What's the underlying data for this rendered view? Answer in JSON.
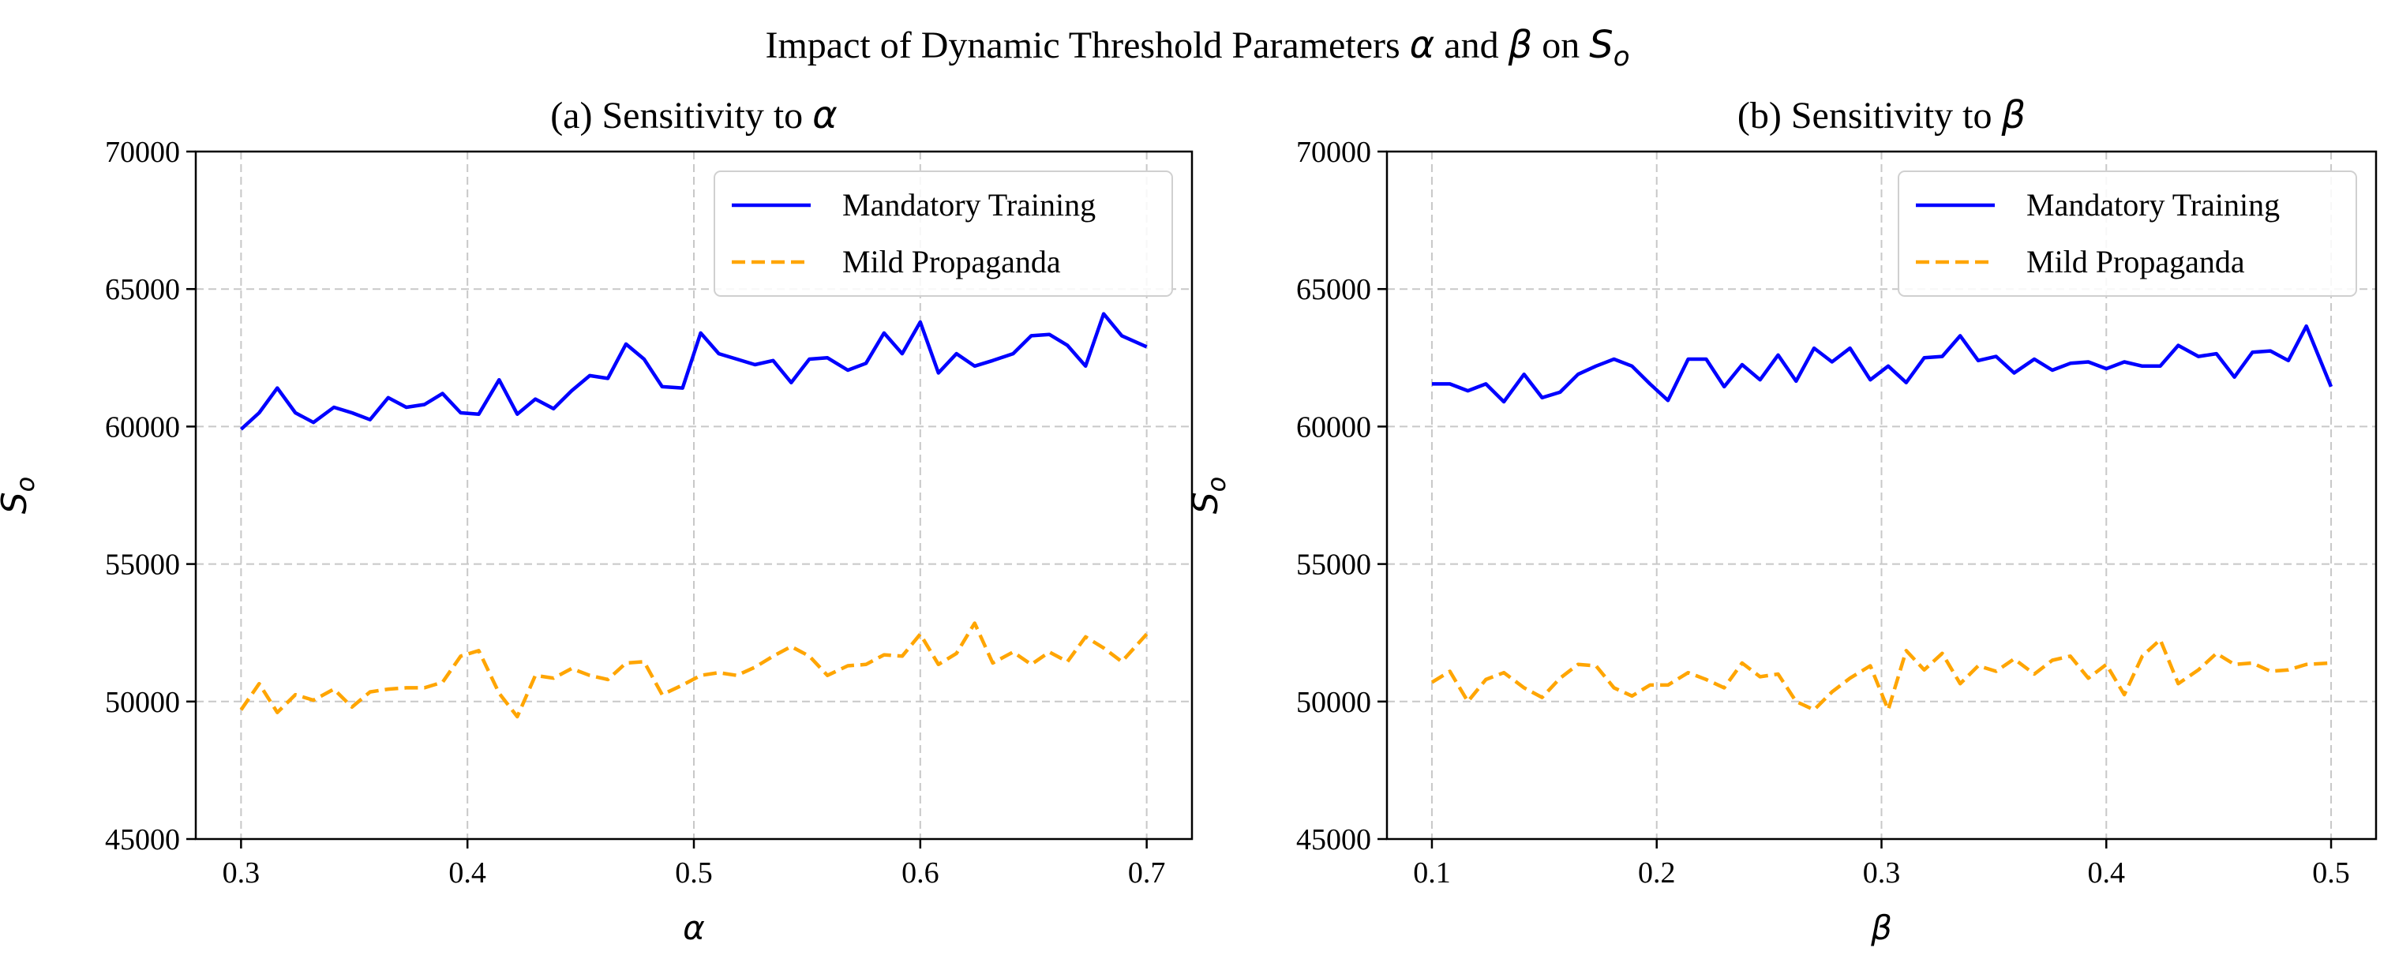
{
  "figure": {
    "title_prefix": "Impact of Dynamic Threshold Parameters ",
    "title_sym1": "α",
    "title_mid": " and ",
    "title_sym2": "β",
    "title_on": " on ",
    "title_sym3": "S",
    "title_sym3_sub": "o"
  },
  "chart_data": [
    {
      "type": "line",
      "title_prefix": "(a) Sensitivity to ",
      "title_symbol": "α",
      "xlabel": "α",
      "ylabel": "S",
      "ylabel_sub": "o",
      "xlim": [
        0.28,
        0.72
      ],
      "ylim": [
        45000,
        70000
      ],
      "xticks": [
        0.3,
        0.4,
        0.5,
        0.6,
        0.7
      ],
      "xtick_labels": [
        "0.3",
        "0.4",
        "0.5",
        "0.6",
        "0.7"
      ],
      "yticks": [
        45000,
        50000,
        55000,
        60000,
        65000,
        70000
      ],
      "ytick_labels": [
        "45000",
        "50000",
        "55000",
        "60000",
        "65000",
        "70000"
      ],
      "grid": true,
      "legend_position": "top-right",
      "x": [
        0.3,
        0.308,
        0.316,
        0.324,
        0.332,
        0.341,
        0.349,
        0.357,
        0.365,
        0.373,
        0.381,
        0.389,
        0.397,
        0.405,
        0.414,
        0.422,
        0.43,
        0.438,
        0.446,
        0.454,
        0.462,
        0.47,
        0.478,
        0.486,
        0.495,
        0.503,
        0.511,
        0.519,
        0.527,
        0.535,
        0.543,
        0.551,
        0.559,
        0.568,
        0.576,
        0.584,
        0.592,
        0.6,
        0.608,
        0.616,
        0.624,
        0.632,
        0.641,
        0.649,
        0.657,
        0.665,
        0.673,
        0.681,
        0.689,
        0.7
      ],
      "series": [
        {
          "name": "Mandatory Training",
          "color": "#0000ff",
          "style": "solid",
          "values": [
            59900,
            60500,
            61400,
            60500,
            60150,
            60700,
            60500,
            60250,
            61050,
            60700,
            60800,
            61200,
            60500,
            60450,
            61700,
            60450,
            61000,
            60650,
            61300,
            61850,
            61750,
            63000,
            62450,
            61450,
            61400,
            63400,
            62650,
            62450,
            62250,
            62400,
            61600,
            62450,
            62500,
            62050,
            62300,
            63400,
            62650,
            63800,
            61950,
            62650,
            62200,
            62400,
            62650,
            63300,
            63350,
            62950,
            62200,
            64100,
            63300,
            62900
          ]
        },
        {
          "name": "Mild Propaganda",
          "color": "#ffa500",
          "style": "dashed",
          "values": [
            49700,
            50650,
            49600,
            50250,
            50050,
            50450,
            49800,
            50350,
            50450,
            50500,
            50500,
            50700,
            51650,
            51850,
            50300,
            49450,
            50950,
            50850,
            51200,
            50950,
            50800,
            51400,
            51450,
            50250,
            50600,
            50950,
            51050,
            50950,
            51250,
            51650,
            52000,
            51650,
            50950,
            51300,
            51350,
            51700,
            51650,
            52450,
            51350,
            51750,
            52850,
            51400,
            51800,
            51350,
            51800,
            51450,
            52350,
            51950,
            51450,
            52450
          ]
        }
      ]
    },
    {
      "type": "line",
      "title_prefix": "(b) Sensitivity to ",
      "title_symbol": "β",
      "xlabel": "β",
      "ylabel": "S",
      "ylabel_sub": "o",
      "xlim": [
        0.08,
        0.52
      ],
      "ylim": [
        45000,
        70000
      ],
      "xticks": [
        0.1,
        0.2,
        0.3,
        0.4,
        0.5
      ],
      "xtick_labels": [
        "0.1",
        "0.2",
        "0.3",
        "0.4",
        "0.5"
      ],
      "yticks": [
        45000,
        50000,
        55000,
        60000,
        65000,
        70000
      ],
      "ytick_labels": [
        "45000",
        "50000",
        "55000",
        "60000",
        "65000",
        "70000"
      ],
      "grid": true,
      "legend_position": "top-right",
      "x": [
        0.1,
        0.108,
        0.116,
        0.124,
        0.132,
        0.141,
        0.149,
        0.157,
        0.165,
        0.173,
        0.181,
        0.189,
        0.197,
        0.205,
        0.214,
        0.222,
        0.23,
        0.238,
        0.246,
        0.254,
        0.262,
        0.27,
        0.278,
        0.286,
        0.295,
        0.303,
        0.311,
        0.319,
        0.327,
        0.335,
        0.343,
        0.351,
        0.359,
        0.368,
        0.376,
        0.384,
        0.392,
        0.4,
        0.408,
        0.416,
        0.424,
        0.432,
        0.441,
        0.449,
        0.457,
        0.465,
        0.473,
        0.481,
        0.489,
        0.5
      ],
      "series": [
        {
          "name": "Mandatory Training",
          "color": "#0000ff",
          "style": "solid",
          "values": [
            61550,
            61550,
            61300,
            61550,
            60900,
            61900,
            61050,
            61250,
            61900,
            62200,
            62450,
            62200,
            61550,
            60950,
            62450,
            62450,
            61450,
            62250,
            61700,
            62600,
            61650,
            62850,
            62350,
            62850,
            61700,
            62200,
            61600,
            62500,
            62550,
            63300,
            62400,
            62550,
            61950,
            62450,
            62050,
            62300,
            62350,
            62100,
            62350,
            62200,
            62200,
            62950,
            62550,
            62650,
            61800,
            62700,
            62750,
            62400,
            63650,
            61450
          ]
        },
        {
          "name": "Mild Propaganda",
          "color": "#ffa500",
          "style": "dashed",
          "values": [
            50700,
            51100,
            50000,
            50800,
            51050,
            50500,
            50150,
            50850,
            51350,
            51300,
            50500,
            50200,
            50600,
            50600,
            51050,
            50800,
            50500,
            51400,
            50900,
            51000,
            50000,
            49700,
            50350,
            50850,
            51300,
            49700,
            51850,
            51150,
            51750,
            50650,
            51300,
            51100,
            51550,
            51000,
            51500,
            51650,
            50850,
            51350,
            50250,
            51650,
            52250,
            50650,
            51150,
            51750,
            51350,
            51400,
            51100,
            51150,
            51350,
            51400
          ]
        }
      ]
    }
  ]
}
